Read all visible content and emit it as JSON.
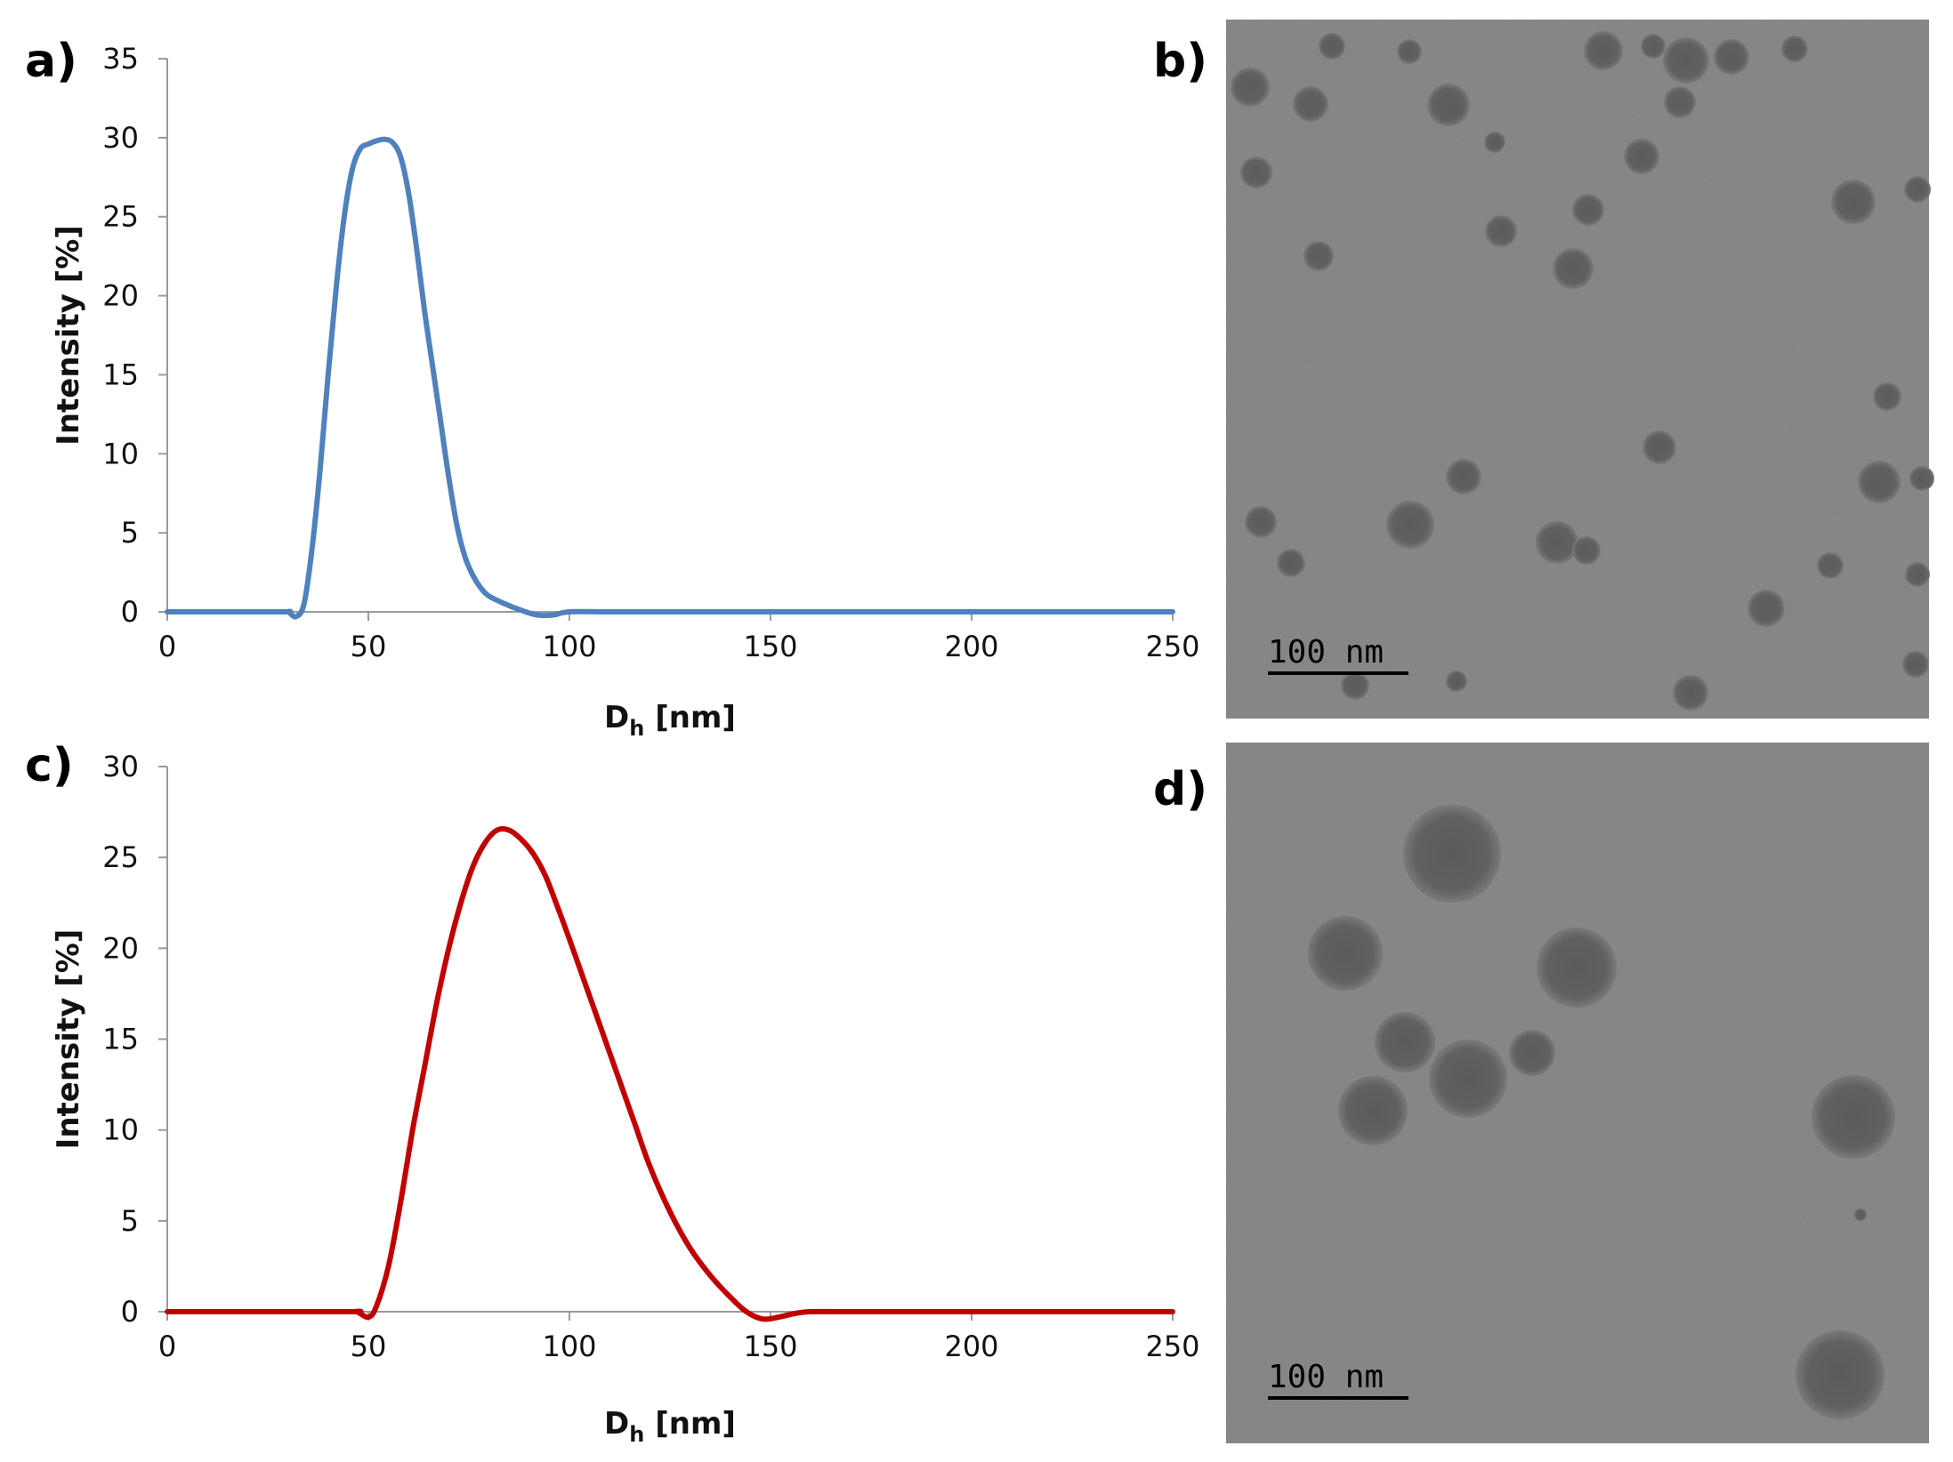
{
  "panel_labels": {
    "a": "a)",
    "b": "b)",
    "c": "c)",
    "d": "d)"
  },
  "chart_data": [
    {
      "type": "line",
      "panel": "a)",
      "xlabel_main": "D",
      "xlabel_sub": "h",
      "xlabel_unit": " [nm]",
      "ylabel": "Intensity [%]",
      "xlim": [
        0,
        250
      ],
      "ylim": [
        0,
        35
      ],
      "xticks": [
        0,
        50,
        100,
        150,
        200,
        250
      ],
      "yticks": [
        0,
        5,
        10,
        15,
        20,
        25,
        30,
        35
      ],
      "grid": false,
      "color": "#4f81bd",
      "series": [
        {
          "x": [
            0,
            28,
            30,
            32,
            34,
            36,
            38,
            40,
            42,
            44,
            46,
            48,
            50,
            52,
            54,
            56,
            58,
            60,
            62,
            64,
            66,
            68,
            70,
            72,
            74,
            76,
            78,
            80,
            84,
            88,
            92,
            96,
            100,
            110,
            120,
            150,
            200,
            250
          ],
          "y": [
            0,
            0,
            0,
            -0.3,
            0.5,
            4,
            9,
            15,
            20.5,
            25,
            28,
            29.3,
            29.6,
            29.8,
            29.9,
            29.7,
            28.8,
            26.5,
            23,
            19,
            15.5,
            12,
            8.5,
            5.5,
            3.5,
            2.3,
            1.5,
            1.0,
            0.5,
            0.1,
            -0.2,
            -0.2,
            0,
            0,
            0,
            0,
            0,
            0
          ]
        }
      ]
    },
    {
      "type": "line",
      "panel": "c)",
      "xlabel_main": "D",
      "xlabel_sub": "h",
      "xlabel_unit": " [nm]",
      "ylabel": "Intensity [%]",
      "xlim": [
        0,
        250
      ],
      "ylim": [
        0,
        30
      ],
      "xticks": [
        0,
        50,
        100,
        150,
        200,
        250
      ],
      "yticks": [
        0,
        5,
        10,
        15,
        20,
        25,
        30
      ],
      "grid": false,
      "color": "#c00000",
      "series": [
        {
          "x": [
            0,
            44,
            47,
            50,
            52,
            55,
            58,
            61,
            64,
            67,
            70,
            73,
            76,
            79,
            82,
            85,
            88,
            91,
            94,
            97,
            100,
            104,
            108,
            112,
            116,
            120,
            125,
            130,
            135,
            140,
            144,
            148,
            152,
            156,
            160,
            170,
            200,
            250
          ],
          "y": [
            0,
            0,
            0,
            -0.3,
            0.3,
            2.5,
            6,
            10,
            13.5,
            17,
            20,
            22.5,
            24.5,
            25.8,
            26.5,
            26.5,
            26,
            25.2,
            24,
            22.3,
            20.5,
            18,
            15.5,
            13,
            10.5,
            8,
            5.5,
            3.5,
            2,
            0.8,
            0,
            -0.4,
            -0.3,
            -0.1,
            0,
            0,
            0,
            0
          ]
        }
      ]
    }
  ],
  "micrographs": {
    "b": {
      "scale_label": "100  nm"
    },
    "d": {
      "scale_label": "100  nm"
    }
  }
}
